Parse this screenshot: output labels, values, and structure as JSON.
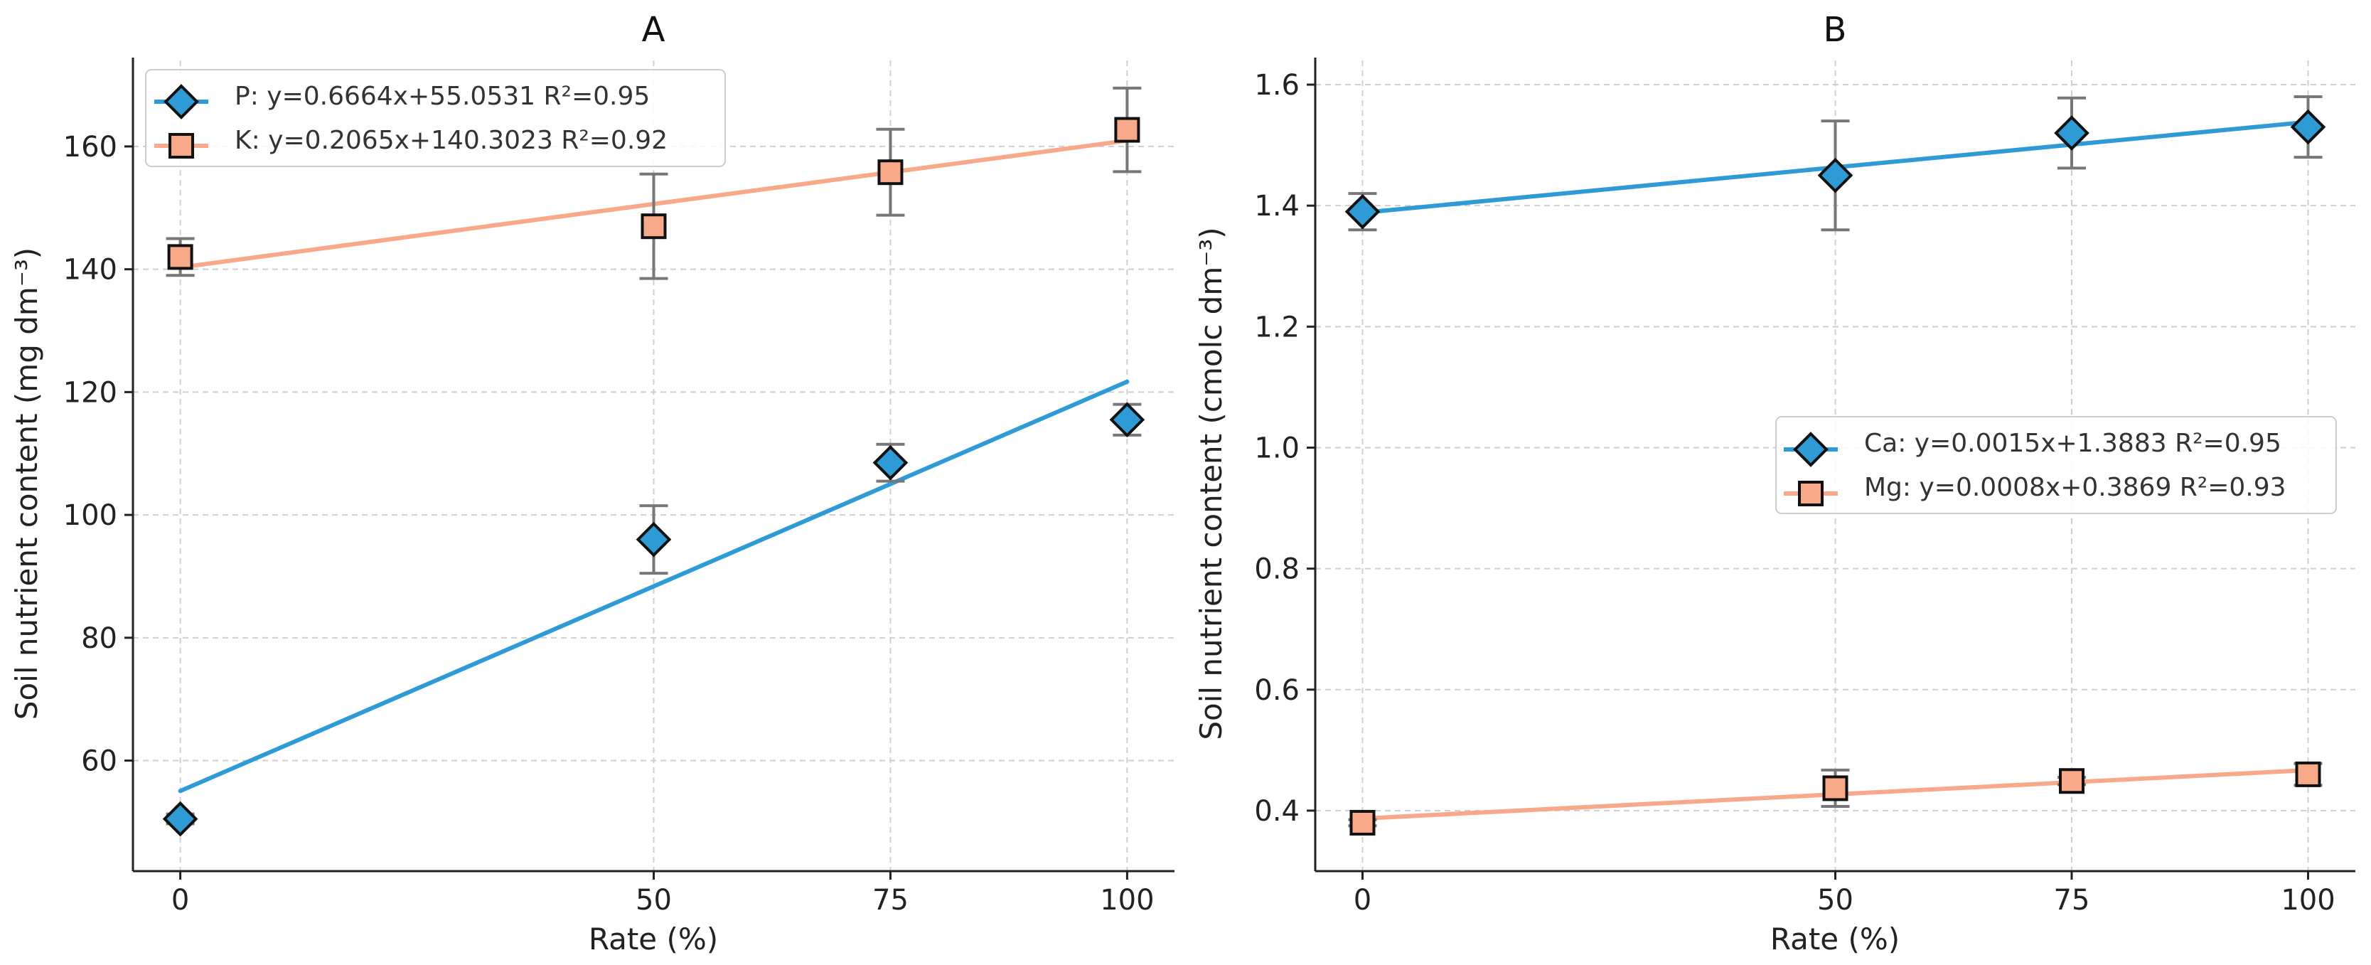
{
  "chart_data": [
    {
      "type": "scatter",
      "title": "A",
      "xlabel": "Rate (%)",
      "ylabel": "Soil nutrient content (mg dm⁻³)",
      "xlim": [
        -5,
        105
      ],
      "ylim": [
        42,
        174
      ],
      "xticks": [
        0,
        50,
        75,
        100
      ],
      "yticks": [
        60,
        80,
        100,
        120,
        140,
        160
      ],
      "grid": true,
      "legend_position": "top-left",
      "series": [
        {
          "name": "P",
          "legend_label": "P: y=0.6664x+55.0531  R²=0.95",
          "marker": "diamond",
          "color": "#2E9BD6",
          "x": [
            0,
            50,
            75,
            100
          ],
          "values": [
            50.5,
            96.0,
            108.5,
            115.5
          ],
          "errors": [
            0.8,
            5.5,
            3.0,
            2.5
          ],
          "fit": {
            "slope": 0.6664,
            "intercept": 55.0531
          }
        },
        {
          "name": "K",
          "legend_label": "K: y=0.2065x+140.3023  R²=0.92",
          "marker": "square",
          "color": "#F7A98A",
          "x": [
            0,
            50,
            75,
            100
          ],
          "values": [
            142.0,
            147.0,
            155.8,
            162.7
          ],
          "errors": [
            3.0,
            8.5,
            7.0,
            6.8
          ],
          "fit": {
            "slope": 0.2065,
            "intercept": 140.3023
          }
        }
      ]
    },
    {
      "type": "scatter",
      "title": "B",
      "xlabel": "Rate (%)",
      "ylabel": "Soil nutrient content (cmolc dm⁻³)",
      "xlim": [
        -5,
        105
      ],
      "ylim": [
        0.3,
        1.64
      ],
      "xticks": [
        0,
        50,
        75,
        100
      ],
      "yticks": [
        0.4,
        0.6,
        0.8,
        1.0,
        1.2,
        1.4,
        1.6
      ],
      "grid": true,
      "legend_position": "center-right",
      "series": [
        {
          "name": "Ca",
          "legend_label": "Ca: y=0.0015x+1.3883  R²=0.95",
          "marker": "diamond",
          "color": "#2E9BD6",
          "x": [
            0,
            50,
            75,
            100
          ],
          "values": [
            1.39,
            1.45,
            1.52,
            1.53
          ],
          "errors": [
            0.03,
            0.09,
            0.058,
            0.05
          ],
          "fit": {
            "slope": 0.0015,
            "intercept": 1.3883
          }
        },
        {
          "name": "Mg",
          "legend_label": "Mg: y=0.0008x+0.3869  R²=0.93",
          "marker": "square",
          "color": "#F7A98A",
          "x": [
            0,
            50,
            75,
            100
          ],
          "values": [
            0.38,
            0.437,
            0.449,
            0.46
          ],
          "errors": [
            0.005,
            0.03,
            0.006,
            0.018
          ],
          "fit": {
            "slope": 0.0008,
            "intercept": 0.3869
          }
        }
      ]
    }
  ]
}
